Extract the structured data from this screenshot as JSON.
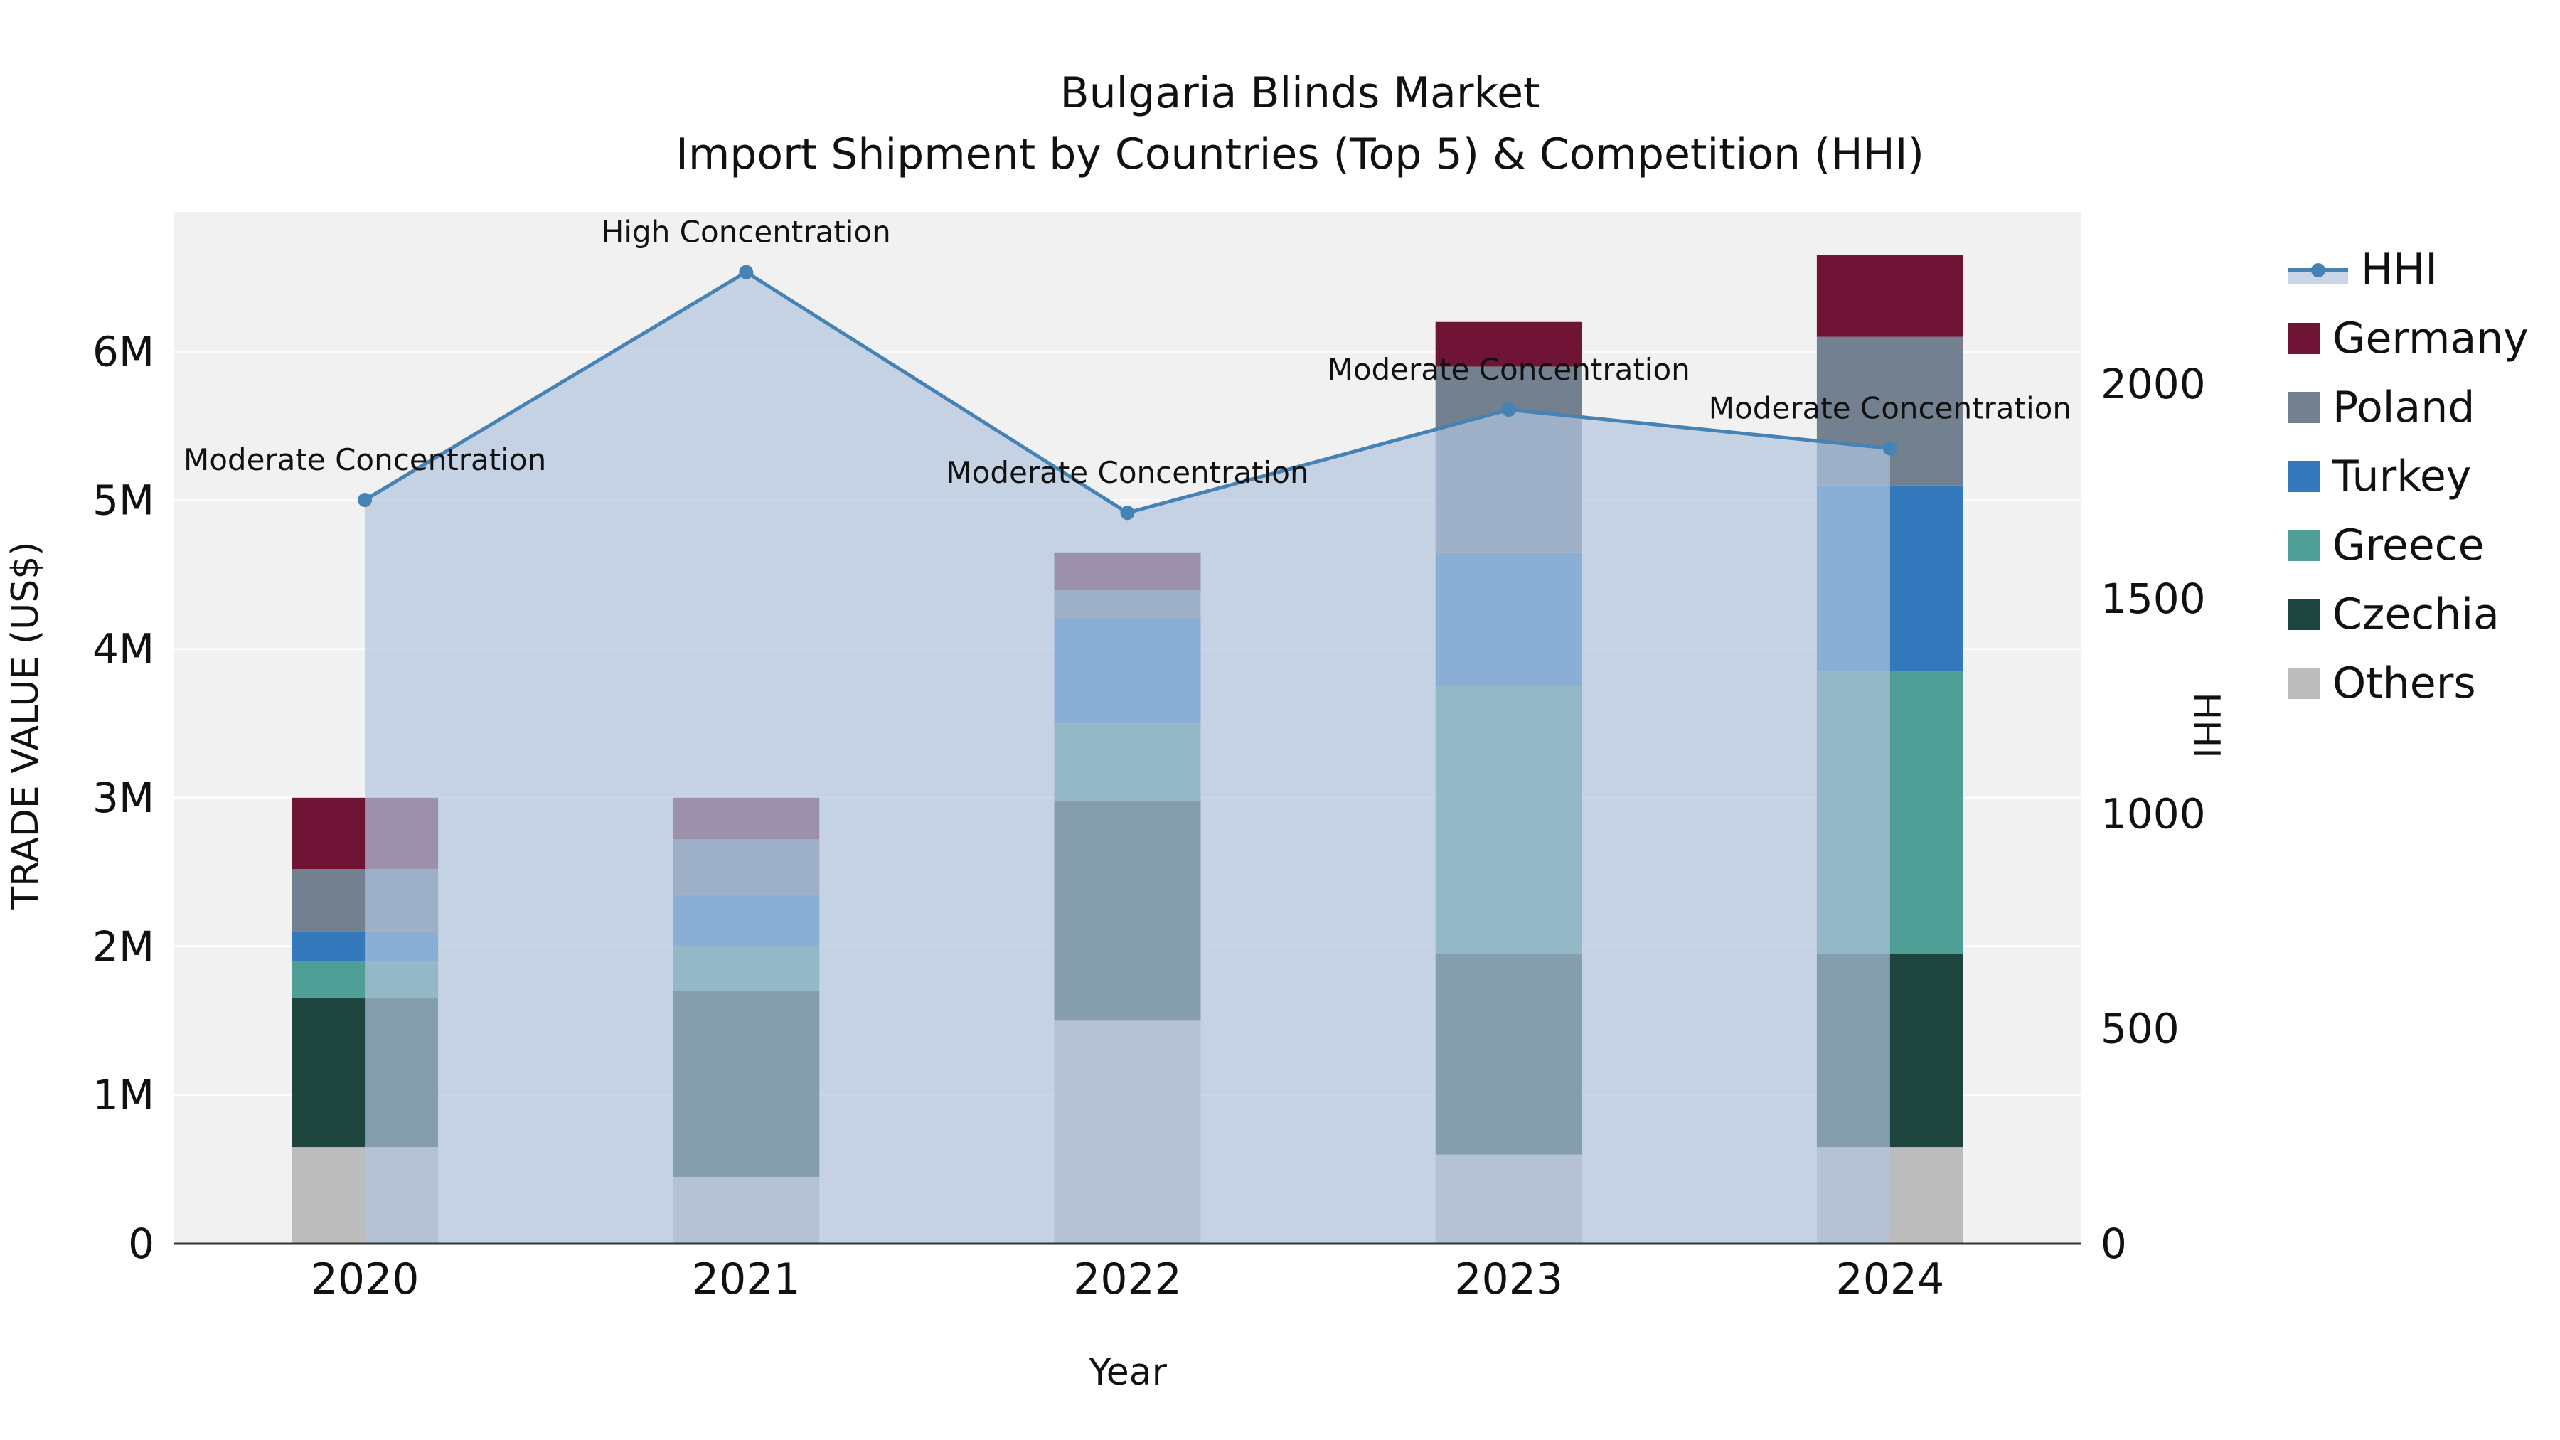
{
  "title": {
    "line1": "Bulgaria Blinds Market",
    "line2": "Import Shipment by Countries (Top 5) & Competition (HHI)"
  },
  "axes": {
    "x_label": "Year",
    "y_left_label": "TRADE VALUE (US$)",
    "y_right_label": "HHI",
    "y_left_ticks": [
      "0",
      "1M",
      "2M",
      "3M",
      "4M",
      "5M",
      "6M"
    ],
    "y_left_tick_values": [
      0,
      1,
      2,
      3,
      4,
      5,
      6
    ],
    "y_left_max": 6.94,
    "y_right_ticks": [
      "0",
      "500",
      "1000",
      "1500",
      "2000"
    ],
    "y_right_tick_values": [
      0,
      500,
      1000,
      1500,
      2000
    ],
    "y_right_max": 2400
  },
  "chart_data": {
    "type": "bar+line",
    "categories": [
      "2020",
      "2021",
      "2022",
      "2023",
      "2024"
    ],
    "bar_unit": "M US$",
    "series": [
      {
        "name": "Others",
        "color": "#bcbcbc",
        "values": [
          0.65,
          0.45,
          1.5,
          0.6,
          0.65
        ]
      },
      {
        "name": "Czechia",
        "color": "#1d453d",
        "values": [
          1.0,
          1.25,
          1.48,
          1.35,
          1.3
        ]
      },
      {
        "name": "Greece",
        "color": "#4f9f97",
        "values": [
          0.25,
          0.3,
          0.52,
          1.8,
          1.9
        ]
      },
      {
        "name": "Turkey",
        "color": "#3579bd",
        "values": [
          0.2,
          0.35,
          0.7,
          0.9,
          1.25
        ]
      },
      {
        "name": "Poland",
        "color": "#72808f",
        "values": [
          0.42,
          0.37,
          0.2,
          1.25,
          1.0
        ]
      },
      {
        "name": "Germany",
        "color": "#6f1434",
        "values": [
          0.48,
          0.28,
          0.25,
          0.3,
          0.55
        ]
      }
    ],
    "bar_totals": [
      3.0,
      3.0,
      4.65,
      6.2,
      6.65
    ],
    "hhi": {
      "name": "HHI",
      "values": [
        1730,
        2260,
        1700,
        1940,
        1850
      ],
      "line_color": "#4682b4",
      "fill_color": "rgba(176,196,222,0.7)"
    },
    "annotations": [
      "Moderate Concentration",
      "High Concentration",
      "Moderate Concentration",
      "Moderate Concentration",
      "Moderate Concentration"
    ],
    "plot_bg_color": "#f1f1f1",
    "grid_color": "#ffffff",
    "spine_color": "#333333"
  },
  "legend": {
    "items": [
      {
        "label": "HHI",
        "type": "line",
        "color": "#4682b4",
        "fill": "rgba(176,196,222,0.7)"
      },
      {
        "label": "Germany",
        "type": "square",
        "color": "#6f1434"
      },
      {
        "label": "Poland",
        "type": "square",
        "color": "#72808f"
      },
      {
        "label": "Turkey",
        "type": "square",
        "color": "#3579bd"
      },
      {
        "label": "Greece",
        "type": "square",
        "color": "#4f9f97"
      },
      {
        "label": "Czechia",
        "type": "square",
        "color": "#1d453d"
      },
      {
        "label": "Others",
        "type": "square",
        "color": "#bcbcbc"
      }
    ]
  }
}
